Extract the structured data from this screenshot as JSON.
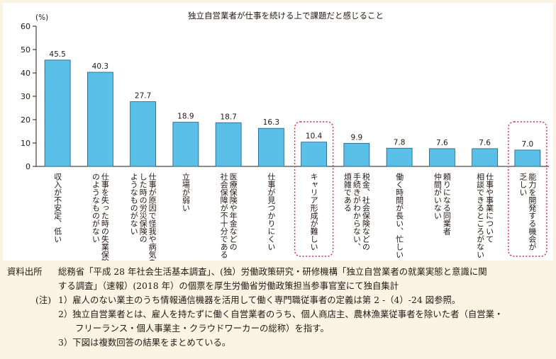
{
  "chart_data": {
    "type": "bar",
    "title": "独立自営業者が仕事を続ける上で課題だと感じること",
    "y_unit": "(%)",
    "ylim": [
      0,
      60
    ],
    "yticks": [
      "0",
      "10",
      "20",
      "30",
      "40",
      "50",
      "60"
    ],
    "categories": [
      "収入が不安定、低い",
      "仕事を失った時の失業保険のようなものがない",
      "仕事が原因で怪我や病気をした時の労災保険のようなものがない",
      "立場が弱い",
      "医療保険や年金などの社会保障が不十分である",
      "仕事が見つかりにくい",
      "キャリア形成が難しい",
      "税金、社会保険などの手続きがわからない、煩雑である",
      "働く時間が長い、忙しい",
      "頼りになる同業者仲間がいない",
      "仕事や事業について相談できるところがない",
      "能力を開発する機会が乏しい"
    ],
    "category_columns": [
      [
        "収入が不安定、低い"
      ],
      [
        "仕事を失った時の失業保険",
        "のようなものがない"
      ],
      [
        "仕事が原因で怪我や病気を",
        "した時の労災保険の",
        "ようなものがない"
      ],
      [
        "立場が弱い"
      ],
      [
        "医療保険や年金などの",
        "社会保障が不十分である"
      ],
      [
        "仕事が見つかりにくい"
      ],
      [
        "キャリア形成が難しい"
      ],
      [
        "税金、社会保険などの",
        "手続きがわからない、",
        "煩雑である"
      ],
      [
        "働く時間が長い、忙しい"
      ],
      [
        "頼りになる同業者",
        "仲間がいない"
      ],
      [
        "仕事や事業について",
        "相談できるところがない"
      ],
      [
        "能力を開発する機会が",
        "乏しい"
      ]
    ],
    "values": [
      45.5,
      40.3,
      27.7,
      18.9,
      18.7,
      16.3,
      10.4,
      9.9,
      7.8,
      7.6,
      7.6,
      7.0
    ],
    "value_labels": [
      "45.5",
      "40.3",
      "27.7",
      "18.9",
      "18.7",
      "16.3",
      "10.4",
      "9.9",
      "7.8",
      "7.6",
      "7.6",
      "7.0"
    ],
    "highlighted": [
      6,
      11
    ],
    "colors": {
      "bar_fill": "#5bc0e8",
      "bar_stroke": "#1a5e86",
      "highlight": "#d7274a",
      "axis": "#231815"
    },
    "grid": false,
    "legend": "none"
  },
  "notes": {
    "source_label": "資料出所",
    "source_line1": "総務省「平成 28 年社会生活基本調査」、(独）労働政策研究・研修機構「独立自営業者の就業実態と意識に関",
    "source_line2": "する調査」（速報）(2018 年）の個票を厚生労働省労働政策担当参事官室にて独自集計",
    "note_label": "(注)",
    "note1": "1）雇人のない業主のうち情報通信機器を活用して働く専門職従事者の定義は第 2 -（4）-24 図参照。",
    "note2_line1": "2）独立自営業者とは、雇人を持たずに働く自営業者のうち、個人商店主、農林漁業従事者を除いた者（自営業・",
    "note2_line2": "フリーランス・個人事業主・クラウドワーカーの総称）を指す。",
    "note3": "3）下図は複数回答の結果をまとめている。"
  }
}
